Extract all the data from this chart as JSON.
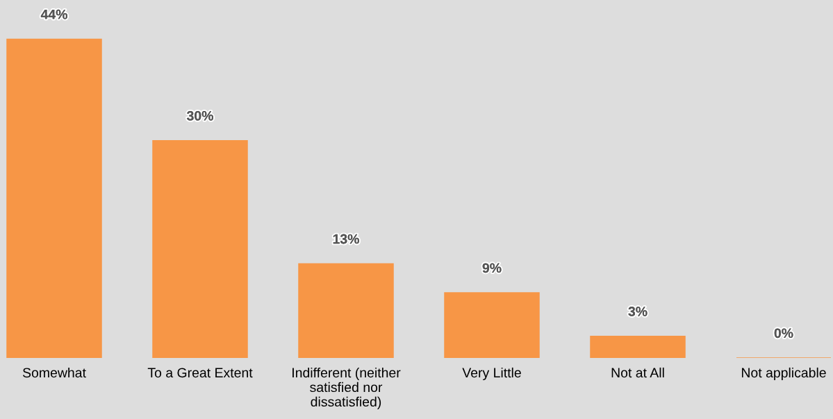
{
  "chart_data": {
    "type": "bar",
    "categories": [
      "Somewhat",
      "To a Great Extent",
      "Indifferent (neither\nsatisfied nor\ndissatisfied)",
      "Very Little",
      "Not at All",
      "Not applicable"
    ],
    "values": [
      44,
      30,
      13,
      9,
      3,
      0
    ],
    "value_labels": [
      "44%",
      "30%",
      "13%",
      "9%",
      "3%",
      "0%"
    ],
    "color": "#f79646",
    "ylim": [
      0,
      49.4
    ],
    "grid": false,
    "legend": false,
    "tick_labels": "x"
  }
}
